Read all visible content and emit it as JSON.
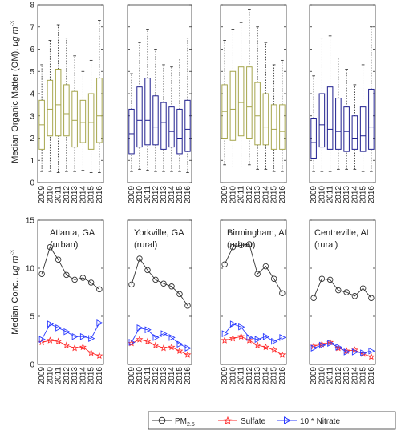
{
  "colors": {
    "olive": "#a6a64d",
    "navy": "#1f1f8f",
    "pm": "#333333",
    "sulfate": "#ff2a2a",
    "nitrate": "#2b3cff"
  },
  "chart_data": [
    {
      "type": "box",
      "ylabel_main": "Median Organic Matter (OM), ",
      "ylabel_unit": "μg m",
      "ylabel_sup": "-3",
      "ylim": [
        0,
        8
      ],
      "yticks": [
        "0",
        "1",
        "2",
        "3",
        "4",
        "5",
        "6",
        "7",
        "8"
      ],
      "categories": [
        "2009",
        "2010",
        "2011",
        "2012",
        "2013",
        "2014",
        "2015",
        "2016"
      ],
      "panels": [
        {
          "color": "olive",
          "boxes": [
            {
              "min": 0.5,
              "q1": 1.5,
              "med": 2.6,
              "q3": 3.7,
              "max": 5.3
            },
            {
              "min": 0.5,
              "q1": 2.1,
              "med": 3.3,
              "q3": 4.6,
              "max": 6.4
            },
            {
              "min": 0.45,
              "q1": 2.1,
              "med": 3.5,
              "q3": 5.1,
              "max": 7.1
            },
            {
              "min": 0.5,
              "q1": 2.1,
              "med": 3.1,
              "q3": 4.4,
              "max": 6.5
            },
            {
              "min": 0.5,
              "q1": 1.6,
              "med": 2.8,
              "q3": 4.1,
              "max": 5.7
            },
            {
              "min": 0.55,
              "q1": 1.8,
              "med": 2.7,
              "q3": 3.7,
              "max": 5.0
            },
            {
              "min": 0.45,
              "q1": 1.5,
              "med": 2.7,
              "q3": 4.0,
              "max": 5.5
            },
            {
              "min": 0.45,
              "q1": 1.8,
              "med": 3.0,
              "q3": 4.7,
              "max": 7.3
            }
          ]
        },
        {
          "color": "navy",
          "boxes": [
            {
              "min": 0.5,
              "q1": 1.3,
              "med": 2.2,
              "q3": 3.3,
              "max": 4.9
            },
            {
              "min": 0.6,
              "q1": 1.6,
              "med": 2.8,
              "q3": 4.3,
              "max": 6.3
            },
            {
              "min": 0.55,
              "q1": 1.7,
              "med": 2.8,
              "q3": 4.7,
              "max": 6.9
            },
            {
              "min": 0.5,
              "q1": 1.7,
              "med": 2.5,
              "q3": 3.9,
              "max": 6.0
            },
            {
              "min": 0.5,
              "q1": 1.5,
              "med": 2.7,
              "q3": 3.6,
              "max": 5.3
            },
            {
              "min": 0.5,
              "q1": 1.6,
              "med": 2.3,
              "q3": 3.4,
              "max": 5.2
            },
            {
              "min": 0.5,
              "q1": 1.3,
              "med": 2.0,
              "q3": 3.3,
              "max": 5.6
            },
            {
              "min": 0.45,
              "q1": 1.4,
              "med": 2.4,
              "q3": 3.7,
              "max": 6.5
            }
          ]
        },
        {
          "color": "olive",
          "boxes": [
            {
              "min": 0.8,
              "q1": 2.0,
              "med": 3.2,
              "q3": 4.4,
              "max": 6.4
            },
            {
              "min": 0.7,
              "q1": 1.9,
              "med": 3.3,
              "q3": 5.0,
              "max": 6.9
            },
            {
              "min": 0.7,
              "q1": 2.1,
              "med": 3.6,
              "q3": 5.2,
              "max": 7.2
            },
            {
              "min": 0.8,
              "q1": 2.0,
              "med": 3.4,
              "q3": 5.2,
              "max": 7.8
            },
            {
              "min": 0.6,
              "q1": 1.7,
              "med": 3.0,
              "q3": 4.5,
              "max": 7.0
            },
            {
              "min": 0.6,
              "q1": 1.7,
              "med": 2.5,
              "q3": 4.0,
              "max": 6.3
            },
            {
              "min": 0.5,
              "q1": 1.5,
              "med": 2.4,
              "q3": 3.5,
              "max": 5.3
            },
            {
              "min": 0.5,
              "q1": 1.5,
              "med": 2.3,
              "q3": 3.5,
              "max": 5.5
            }
          ]
        },
        {
          "color": "navy",
          "boxes": [
            {
              "min": 0.5,
              "q1": 1.1,
              "med": 1.8,
              "q3": 2.9,
              "max": 4.8
            },
            {
              "min": 0.5,
              "q1": 1.6,
              "med": 2.6,
              "q3": 4.0,
              "max": 6.5
            },
            {
              "min": 0.5,
              "q1": 1.5,
              "med": 2.4,
              "q3": 4.3,
              "max": 6.6
            },
            {
              "min": 0.6,
              "q1": 1.5,
              "med": 2.3,
              "q3": 3.8,
              "max": 5.6
            },
            {
              "min": 0.6,
              "q1": 1.4,
              "med": 2.3,
              "q3": 3.4,
              "max": 5.1
            },
            {
              "min": 0.6,
              "q1": 1.5,
              "med": 2.0,
              "q3": 3.0,
              "max": 4.4
            },
            {
              "min": 0.5,
              "q1": 1.4,
              "med": 2.1,
              "q3": 3.4,
              "max": 5.3
            },
            {
              "min": 0.5,
              "q1": 1.5,
              "med": 2.5,
              "q3": 4.2,
              "max": 7.0
            }
          ]
        }
      ]
    },
    {
      "type": "line",
      "ylabel_main": "Median Conc., ",
      "ylabel_unit": "μg m",
      "ylabel_sup": "-3",
      "ylim": [
        0,
        15
      ],
      "yticks": [
        "0",
        "5",
        "10",
        "15"
      ],
      "categories": [
        "2009",
        "2010",
        "2011",
        "2012",
        "2013",
        "2014",
        "2015",
        "2016"
      ],
      "panels": [
        {
          "site": "Atlanta, GA",
          "type_label": "(urban)",
          "pm25": [
            9.4,
            12.2,
            10.9,
            9.3,
            8.8,
            9.0,
            8.5,
            7.8
          ],
          "sulfate": [
            2.3,
            2.5,
            2.4,
            2.0,
            1.7,
            1.8,
            1.2,
            0.9
          ],
          "nitrate": [
            2.6,
            4.2,
            3.8,
            3.4,
            2.9,
            2.9,
            2.7,
            4.3
          ]
        },
        {
          "site": "Yorkville, GA",
          "type_label": "(rural)",
          "pm25": [
            8.3,
            11.0,
            9.8,
            8.8,
            8.4,
            8.1,
            7.3,
            6.1
          ],
          "sulfate": [
            2.2,
            2.6,
            2.4,
            2.0,
            1.7,
            1.8,
            1.4,
            1.0
          ],
          "nitrate": [
            2.3,
            3.8,
            3.6,
            2.8,
            3.2,
            2.8,
            2.1,
            1.7
          ]
        },
        {
          "site": "Birmingham, AL",
          "type_label": "(urban)",
          "pm25": [
            10.4,
            12.2,
            12.4,
            12.5,
            9.4,
            10.2,
            8.9,
            7.4
          ],
          "sulfate": [
            2.5,
            2.7,
            2.9,
            2.5,
            2.0,
            1.8,
            1.5,
            1.0
          ],
          "nitrate": [
            3.2,
            4.2,
            3.9,
            2.8,
            2.6,
            2.9,
            2.4,
            2.8
          ]
        },
        {
          "site": "Centreville, AL",
          "type_label": "(rural)",
          "pm25": [
            6.9,
            8.9,
            8.8,
            7.7,
            7.5,
            7.1,
            7.9,
            6.9
          ],
          "sulfate": [
            1.9,
            2.1,
            2.3,
            1.7,
            1.4,
            1.5,
            1.1,
            0.8
          ],
          "nitrate": [
            1.7,
            2.0,
            2.2,
            1.8,
            1.3,
            1.3,
            1.2,
            1.4
          ]
        }
      ]
    }
  ],
  "legend": {
    "pm_main": "PM",
    "pm_sub": "2.5",
    "sulfate": "Sulfate",
    "nitrate": "10 * Nitrate"
  }
}
